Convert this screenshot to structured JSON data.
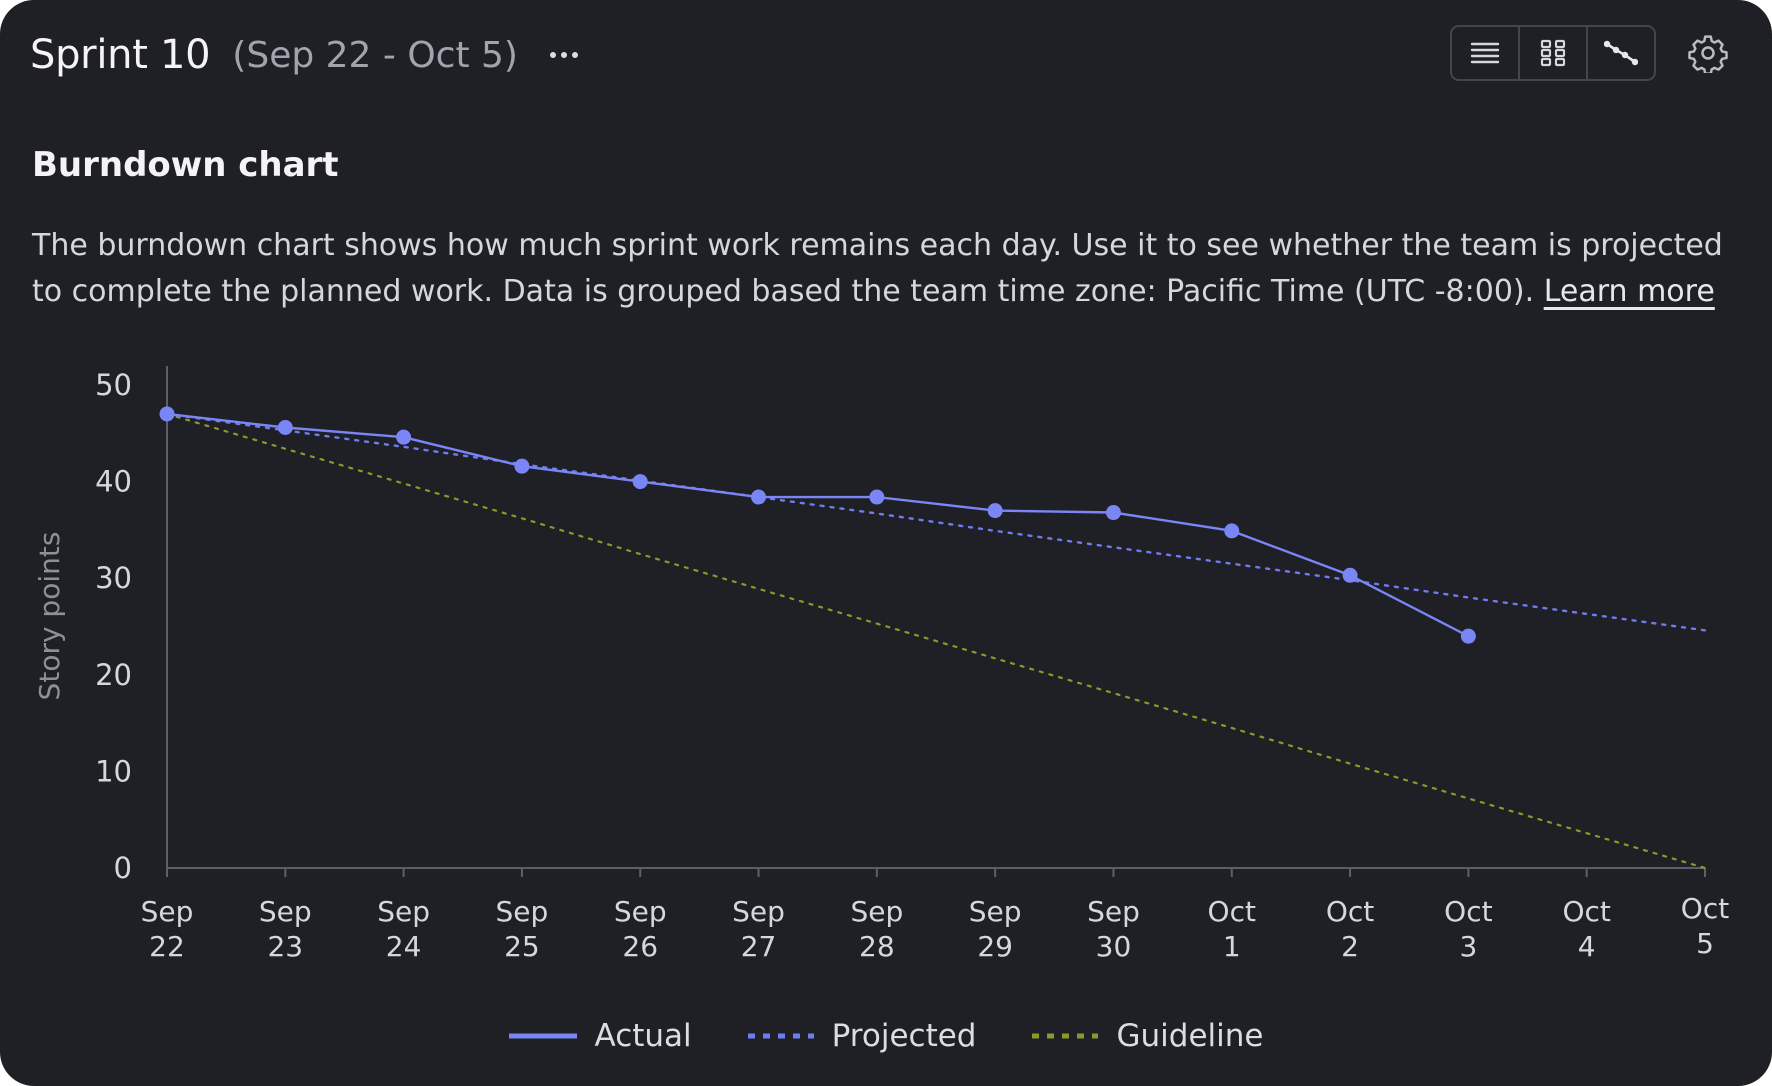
{
  "header": {
    "title": "Sprint 10",
    "dates": "(Sep 22 - Oct 5)",
    "more_icon": "more-horizontal-icon",
    "view_icons": [
      "list-icon",
      "grid-icon",
      "chart-line-icon"
    ],
    "settings_icon": "gear-icon"
  },
  "section": {
    "heading": "Burndown chart",
    "description": "The burndown chart shows how much sprint work remains each day. Use it to see whether the team is projected to complete the planned work. Data is grouped based the team time zone: Pacific Time (UTC -8:00).",
    "learn_more": "Learn more"
  },
  "colors": {
    "actual": "#7a86f5",
    "projected": "#6f7cf0",
    "guideline": "#8a9a2a",
    "axis": "#5d5e68",
    "tick_text": "#d6d7dd",
    "ylabel_text": "#8e8f99"
  },
  "chart_data": {
    "type": "line",
    "ylabel": "Story points",
    "ylim": [
      0,
      50
    ],
    "yticks": [
      "0",
      "10",
      "20",
      "30",
      "40",
      "50"
    ],
    "x": [
      [
        "Sep",
        "22"
      ],
      [
        "Sep",
        "23"
      ],
      [
        "Sep",
        "24"
      ],
      [
        "Sep",
        "25"
      ],
      [
        "Sep",
        "26"
      ],
      [
        "Sep",
        "27"
      ],
      [
        "Sep",
        "28"
      ],
      [
        "Sep",
        "29"
      ],
      [
        "Sep",
        "30"
      ],
      [
        "Oct",
        "1"
      ],
      [
        "Oct",
        "2"
      ],
      [
        "Oct",
        "3"
      ],
      [
        "Oct",
        "4"
      ],
      [
        "Oct",
        "5"
      ]
    ],
    "series": [
      {
        "name": "Actual",
        "style": "solid",
        "markers": true,
        "values": [
          47,
          45.6,
          44.6,
          41.6,
          40,
          38.4,
          38.4,
          37,
          36.8,
          34.9,
          30.3,
          24,
          null,
          null
        ]
      },
      {
        "name": "Projected",
        "style": "dotted",
        "markers": false,
        "values": [
          47,
          45.3,
          43.6,
          41.8,
          40.1,
          38.4,
          36.7,
          34.9,
          33.2,
          31.5,
          29.8,
          28.0,
          26.3,
          24.6
        ]
      },
      {
        "name": "Guideline",
        "style": "dotted",
        "markers": false,
        "values": [
          47,
          43.4,
          39.8,
          36.2,
          32.5,
          28.9,
          25.3,
          21.7,
          18.1,
          14.5,
          10.8,
          7.2,
          3.6,
          0
        ]
      }
    ],
    "grid": false,
    "legend_position": "bottom-center"
  }
}
